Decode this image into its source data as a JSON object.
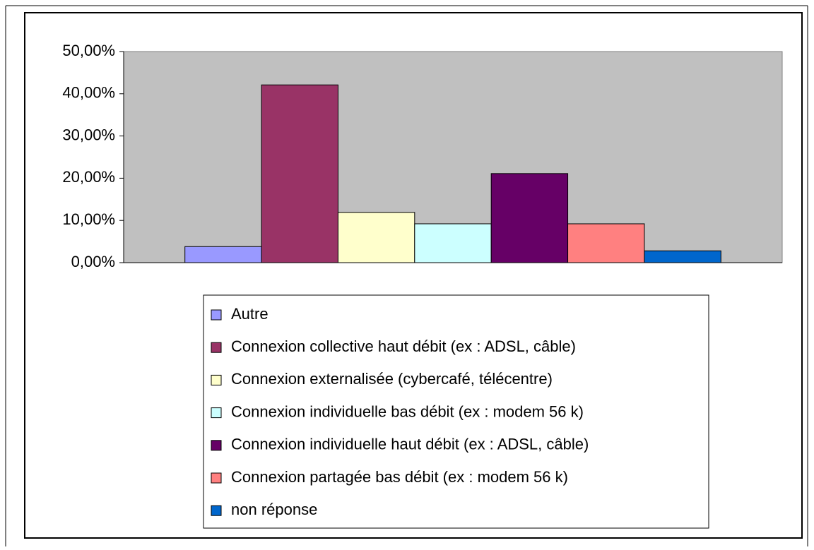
{
  "chart_data": {
    "type": "bar",
    "series": [
      {
        "name": "Autre",
        "color": "#9999ff",
        "values": [
          3.8
        ]
      },
      {
        "name": "Connexion collective haut débit (ex : ADSL, câble)",
        "color": "#993366",
        "values": [
          42.1
        ]
      },
      {
        "name": "Connexion externalisée (cybercafé, télécentre)",
        "color": "#ffffcc",
        "values": [
          11.9
        ]
      },
      {
        "name": "Connexion individuelle bas débit (ex : modem 56 k)",
        "color": "#ccffff",
        "values": [
          9.2
        ]
      },
      {
        "name": "Connexion individuelle haut débit (ex : ADSL, câble)",
        "color": "#660066",
        "values": [
          21.1
        ]
      },
      {
        "name": "Connexion partagée bas débit (ex : modem 56 k)",
        "color": "#ff8080",
        "values": [
          9.2
        ]
      },
      {
        "name": "non réponse",
        "color": "#0066cc",
        "values": [
          2.8
        ]
      }
    ],
    "ylim": [
      0,
      50
    ],
    "yticks": [
      {
        "value": 0,
        "label": "0,00%"
      },
      {
        "value": 10,
        "label": "10,00%"
      },
      {
        "value": 20,
        "label": "20,00%"
      },
      {
        "value": 30,
        "label": "30,00%"
      },
      {
        "value": 40,
        "label": "40,00%"
      },
      {
        "value": 50,
        "label": "50,00%"
      }
    ],
    "grid": false,
    "plot_background": "#c0c0c0",
    "legend": "bottom"
  }
}
